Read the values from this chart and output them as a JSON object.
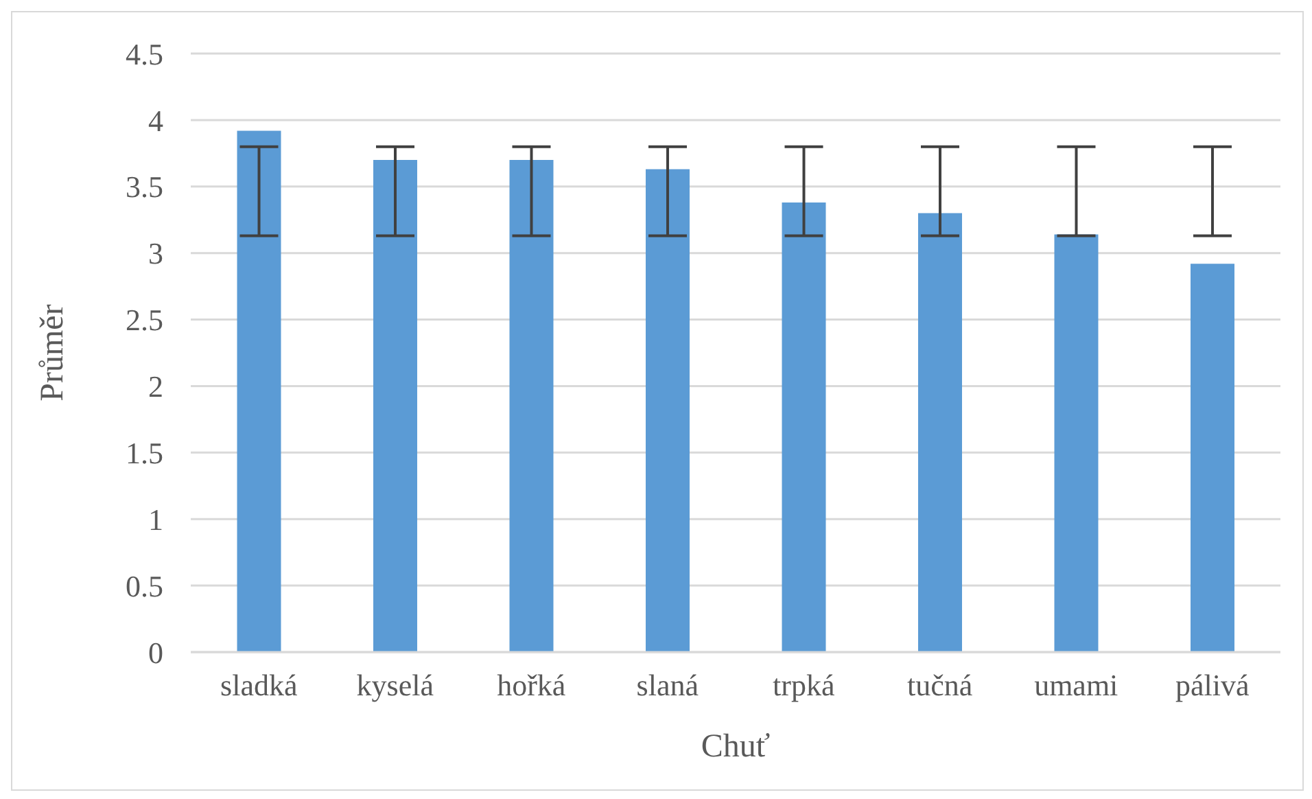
{
  "chart_data": {
    "type": "bar",
    "xlabel": "Chuť",
    "ylabel": "Průměr",
    "categories": [
      "sladká",
      "kyselá",
      "hořká",
      "slaná",
      "trpká",
      "tučná",
      "umami",
      "pálivá"
    ],
    "values": [
      3.92,
      3.7,
      3.7,
      3.63,
      3.38,
      3.3,
      3.14,
      2.92
    ],
    "color": "#5b9bd5",
    "errors": [
      [
        3.13,
        3.8
      ],
      [
        3.13,
        3.8
      ],
      [
        3.13,
        3.8
      ],
      [
        3.13,
        3.8
      ],
      [
        3.13,
        3.8
      ],
      [
        3.13,
        3.8
      ],
      [
        3.13,
        3.8
      ],
      [
        3.13,
        3.8
      ]
    ],
    "ylim": [
      0,
      4.5
    ],
    "yticks": [
      0,
      0.5,
      1,
      1.5,
      2,
      2.5,
      3,
      3.5,
      4,
      4.5
    ],
    "grid": "y",
    "legend": false
  }
}
